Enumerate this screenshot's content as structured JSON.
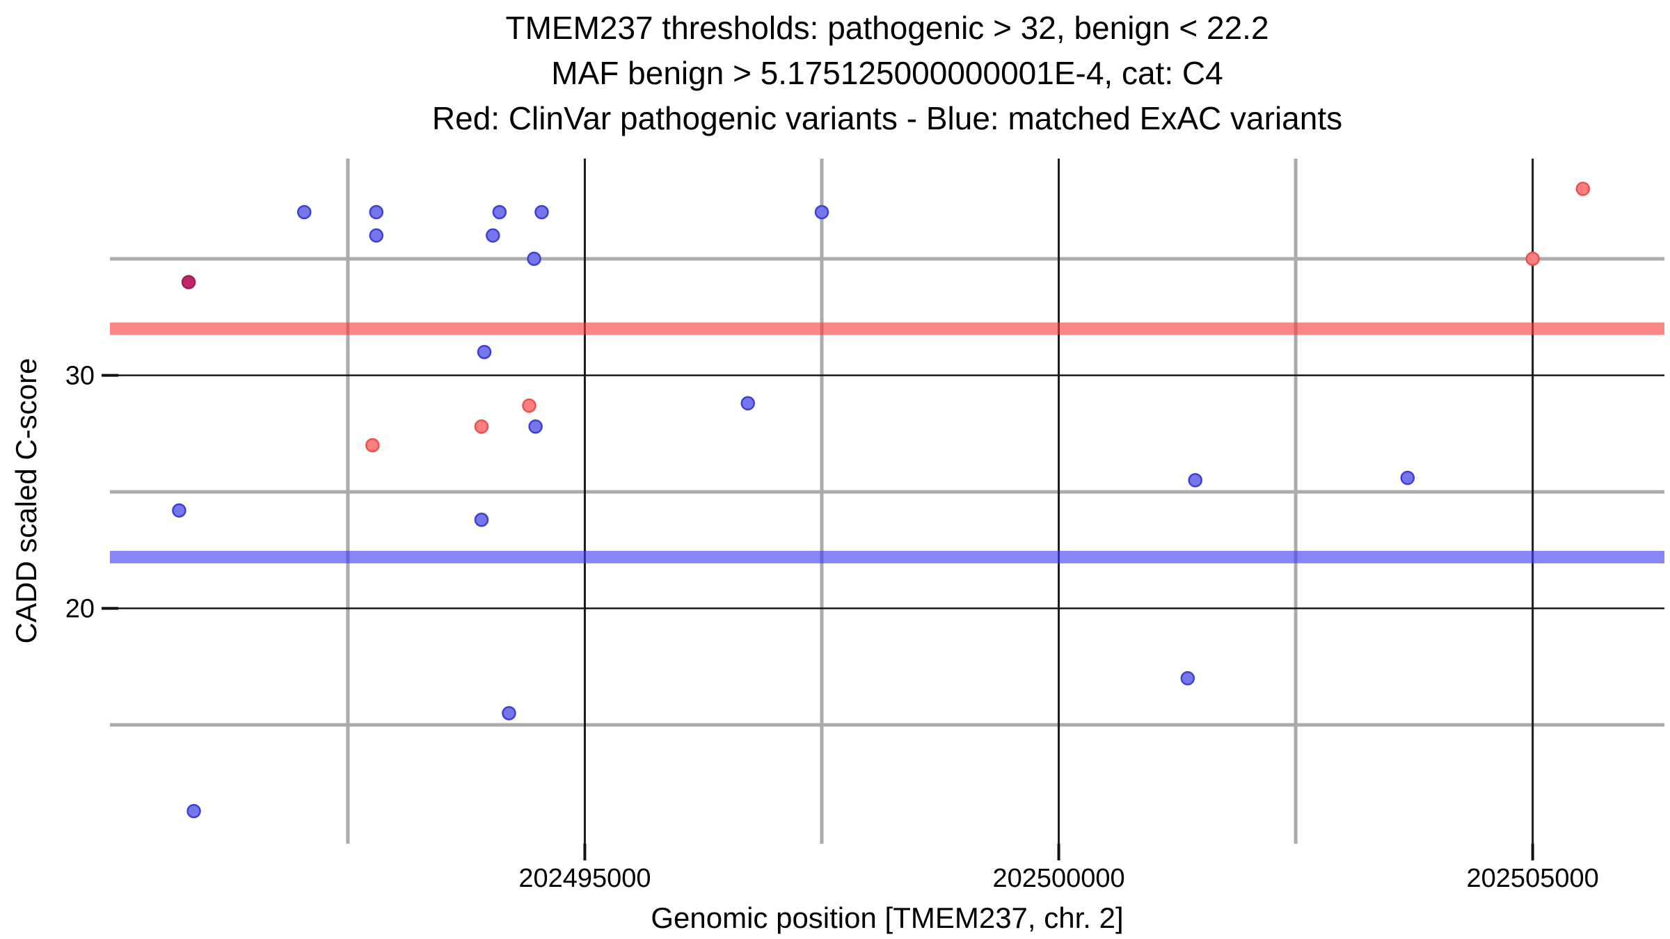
{
  "figure": {
    "title_lines": [
      "TMEM237 thresholds: pathogenic > 32, benign < 22.2",
      "MAF benign > 5.175125000000001E-4, cat: C4",
      "Red: ClinVar pathogenic variants - Blue: matched ExAC variants"
    ],
    "x_axis_label": "Genomic position [TMEM237, chr. 2]",
    "y_axis_label": "CADD scaled C-score"
  },
  "chart_data": {
    "type": "scatter",
    "title": "TMEM237 thresholds: pathogenic > 32, benign < 22.2 | MAF benign > 5.175125000000001E-4, cat: C4 | Red: ClinVar pathogenic variants - Blue: matched ExAC variants",
    "xlabel": "Genomic position [TMEM237, chr. 2]",
    "ylabel": "CADD scaled C-score",
    "xlim": [
      202489990,
      202506390
    ],
    "ylim": [
      9.9,
      39.3
    ],
    "x_major_ticks": [
      202495000,
      202500000,
      202505000
    ],
    "x_tick_labels": [
      "202495000",
      "202500000",
      "202505000"
    ],
    "x_minor_gridlines": [
      202492500,
      202497500,
      202502500
    ],
    "y_major_ticks": [
      20,
      30
    ],
    "y_tick_labels": [
      "20",
      "30"
    ],
    "y_minor_gridlines": [
      15,
      25,
      35
    ],
    "grid": "major gridlines dark, minor gridlines gray, white background",
    "legend_position": "none",
    "thresholds": {
      "pathogenic_gt": 32,
      "benign_lt": 22.2,
      "pathogenic_band_color": "#f98787",
      "benign_band_color": "#8688f5"
    },
    "series": [
      {
        "name": "matched ExAC variants",
        "marker_color": "#7577ec",
        "marker_stroke": "#3f3fd3",
        "points": [
          {
            "x": 202492040,
            "y": 37.0
          },
          {
            "x": 202492800,
            "y": 37.0
          },
          {
            "x": 202492800,
            "y": 36.0
          },
          {
            "x": 202494100,
            "y": 37.0
          },
          {
            "x": 202494545,
            "y": 37.0
          },
          {
            "x": 202494030,
            "y": 36.0
          },
          {
            "x": 202494465,
            "y": 35.0
          },
          {
            "x": 202497500,
            "y": 37.0
          },
          {
            "x": 202493940,
            "y": 31.0
          },
          {
            "x": 202494480,
            "y": 27.8
          },
          {
            "x": 202496720,
            "y": 28.8
          },
          {
            "x": 202501440,
            "y": 25.5
          },
          {
            "x": 202503680,
            "y": 25.6
          },
          {
            "x": 202490720,
            "y": 24.2
          },
          {
            "x": 202493910,
            "y": 23.8
          },
          {
            "x": 202501360,
            "y": 17.0
          },
          {
            "x": 202494200,
            "y": 15.5
          },
          {
            "x": 202490875,
            "y": 11.3
          }
        ]
      },
      {
        "name": "ClinVar pathogenic variants",
        "marker_color": "#fb7f7f",
        "marker_stroke": "#ee5050",
        "points": [
          {
            "x": 202492760,
            "y": 27.0
          },
          {
            "x": 202493910,
            "y": 27.8
          },
          {
            "x": 202494413,
            "y": 28.7
          },
          {
            "x": 202505000,
            "y": 35.0
          },
          {
            "x": 202505530,
            "y": 38.0
          }
        ]
      },
      {
        "name": "ClinVar pathogenic overlapping ExAC variant",
        "marker_color": "#c12569",
        "marker_stroke": "#9e1d55",
        "points": [
          {
            "x": 202490820,
            "y": 34.0
          }
        ]
      }
    ]
  }
}
